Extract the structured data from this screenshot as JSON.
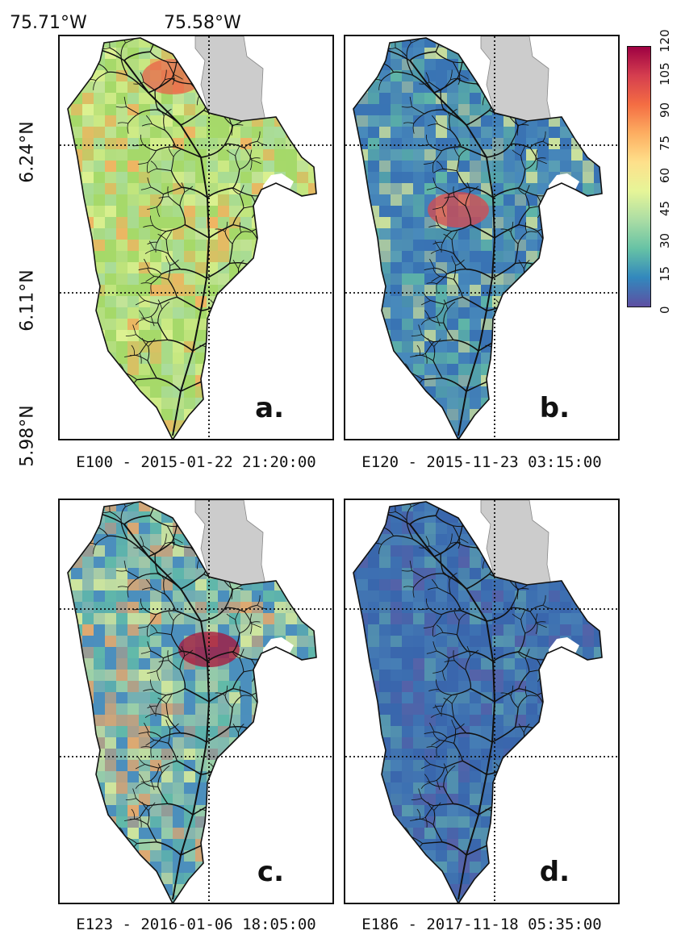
{
  "axes": {
    "lon_labels": [
      "75.71°W",
      "75.58°W"
    ],
    "lat_labels": [
      "6.24°N",
      "6.11°N",
      "5.98°N"
    ]
  },
  "colorbar": {
    "ticks": [
      "0",
      "15",
      "30",
      "45",
      "60",
      "75",
      "90",
      "105",
      "120"
    ],
    "min": 0,
    "max": 120,
    "colors": [
      "#5e4fa2",
      "#3288bd",
      "#66c2a5",
      "#abdda4",
      "#e6f598",
      "#fee08b",
      "#fdae61",
      "#f46d43",
      "#d53e4f",
      "#9e0142"
    ]
  },
  "panels": [
    {
      "letter": "a.",
      "caption": "E100 - 2015-01-22 21:20:00",
      "palette": [
        "#a6d96a",
        "#c8e6a0",
        "#e6f598",
        "#abdda4",
        "#fdae61"
      ],
      "hot": "#e8644a"
    },
    {
      "letter": "b.",
      "caption": "E120 - 2015-11-23 03:15:00",
      "palette": [
        "#3a74b4",
        "#4c8fbd",
        "#5fa6b5",
        "#66c2a5",
        "#e6f598"
      ],
      "hot": "#d9494d"
    },
    {
      "letter": "c.",
      "caption": "E123 - 2016-01-06 18:05:00",
      "palette": [
        "#4c8fbd",
        "#66c2a5",
        "#abdda4",
        "#e6f598",
        "#fdae61"
      ],
      "hot": "#a8133a"
    },
    {
      "letter": "d.",
      "caption": "E186 - 2017-11-18 05:35:00",
      "palette": [
        "#3a67ad",
        "#3f74b3",
        "#4b86b8",
        "#5a62a8",
        "#5ea4b0"
      ],
      "hot": "#3a67ad"
    }
  ]
}
